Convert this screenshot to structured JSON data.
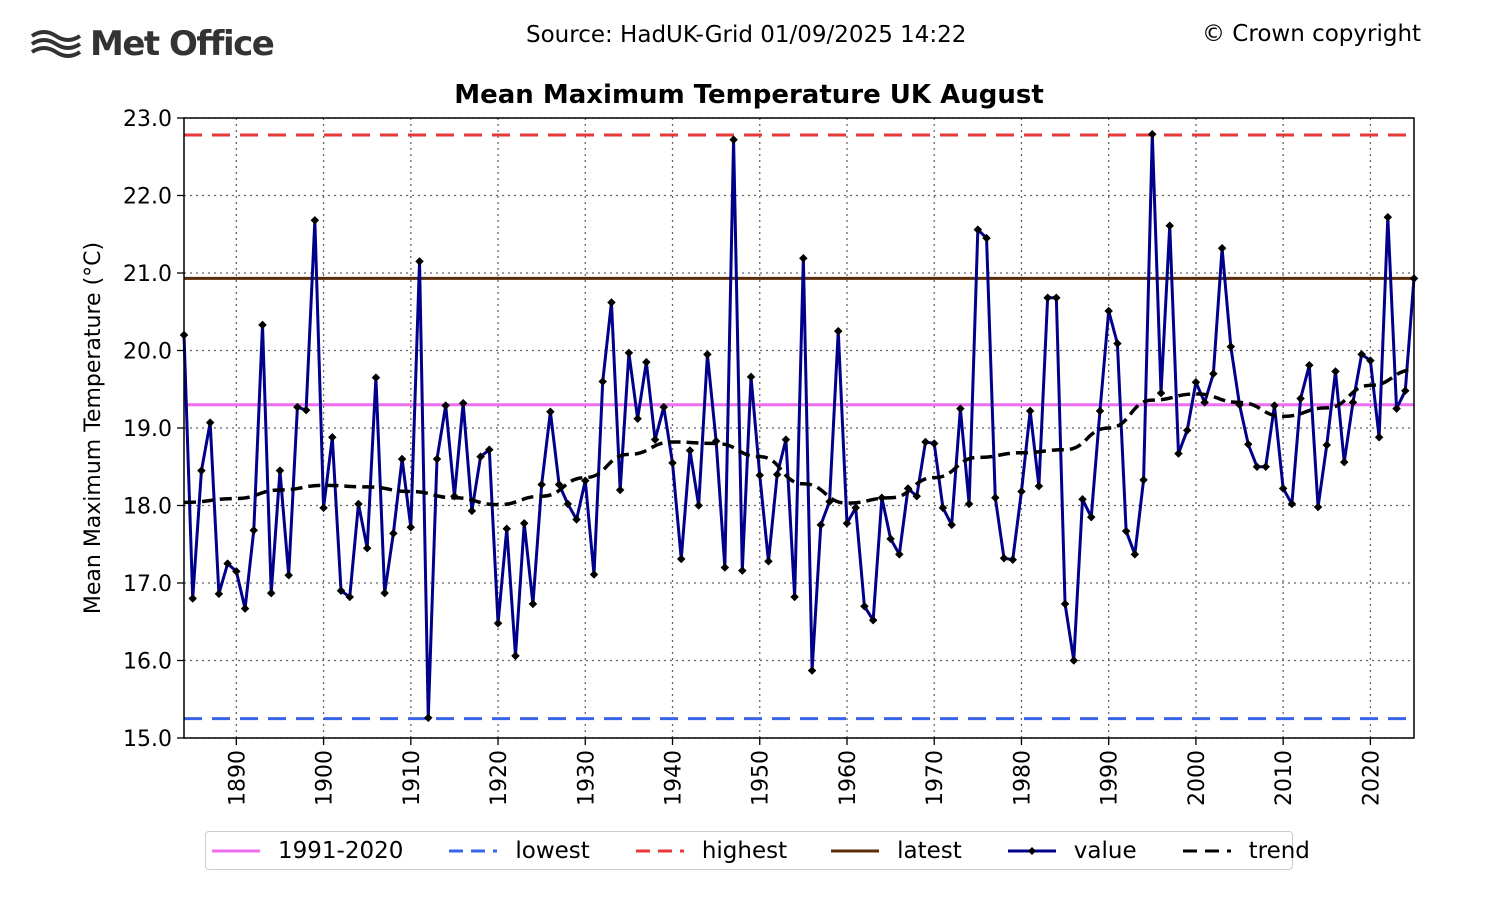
{
  "header": {
    "logo_text": "Met Office",
    "source": "Source: HadUK-Grid 01/09/2025 14:22",
    "copyright": "© Crown copyright"
  },
  "chart_data": {
    "type": "line",
    "title": "Mean Maximum Temperature UK August",
    "xlabel": "",
    "ylabel": "Mean Maximum Temperature (°C)",
    "xlim": [
      1884,
      2025
    ],
    "ylim": [
      15.0,
      23.0
    ],
    "yticks": [
      "15.0",
      "16.0",
      "17.0",
      "18.0",
      "19.0",
      "20.0",
      "21.0",
      "22.0",
      "23.0"
    ],
    "xticks": [
      "1890",
      "1900",
      "1910",
      "1920",
      "1930",
      "1940",
      "1950",
      "1960",
      "1970",
      "1980",
      "1990",
      "2000",
      "2010",
      "2020"
    ],
    "grid": true,
    "reference_lines": [
      {
        "name": "1991-2020",
        "value": 19.3,
        "color": "#ee6ef0",
        "style": "solid"
      },
      {
        "name": "lowest",
        "value": 15.25,
        "color": "#3a64e8",
        "style": "dashed"
      },
      {
        "name": "highest",
        "value": 22.78,
        "color": "#e8383a",
        "style": "dashed"
      },
      {
        "name": "latest",
        "value": 20.93,
        "color": "#5c2c06",
        "style": "solid"
      }
    ],
    "series": [
      {
        "name": "value",
        "color": "#00008b",
        "start_year": 1884,
        "values": [
          20.2,
          16.8,
          18.45,
          19.07,
          16.86,
          17.25,
          17.15,
          16.67,
          17.68,
          20.33,
          16.87,
          18.45,
          17.1,
          19.27,
          19.23,
          21.68,
          17.97,
          18.88,
          16.9,
          16.82,
          18.02,
          17.45,
          19.65,
          16.87,
          17.64,
          18.6,
          17.72,
          21.15,
          15.26,
          18.6,
          19.29,
          18.12,
          19.32,
          17.93,
          18.63,
          18.72,
          16.48,
          17.7,
          16.06,
          17.77,
          16.73,
          18.27,
          19.21,
          18.27,
          18.02,
          17.82,
          18.32,
          17.11,
          19.6,
          20.62,
          18.2,
          19.97,
          19.12,
          19.85,
          18.85,
          19.27,
          18.55,
          17.31,
          18.71,
          18.0,
          19.95,
          18.83,
          17.2,
          22.72,
          17.16,
          19.66,
          18.39,
          17.28,
          18.4,
          18.85,
          16.82,
          21.19,
          15.87,
          17.75,
          18.05,
          20.25,
          17.77,
          17.97,
          16.7,
          16.52,
          18.1,
          17.57,
          17.37,
          18.22,
          18.12,
          18.82,
          18.8,
          17.97,
          17.75,
          19.25,
          18.02,
          21.56,
          21.45,
          18.1,
          17.32,
          17.3,
          18.18,
          19.22,
          18.25,
          20.68,
          20.68,
          16.73,
          16.0,
          18.08,
          17.85,
          19.22,
          20.51,
          20.09,
          17.67,
          17.37,
          18.33,
          22.79,
          19.45,
          21.61,
          18.67,
          18.97,
          19.59,
          19.33,
          19.7,
          21.32,
          20.05,
          19.3,
          18.79,
          18.5,
          18.5,
          19.29,
          18.22,
          18.02,
          19.38,
          19.81,
          17.98,
          18.78,
          19.73,
          18.56,
          19.33,
          19.95,
          19.87,
          18.88,
          21.72,
          19.25,
          19.48,
          20.93
        ]
      },
      {
        "name": "trend",
        "color": "#000000",
        "style": "dashed",
        "points": [
          [
            1884,
            18.04
          ],
          [
            1890,
            18.09
          ],
          [
            1895,
            18.2
          ],
          [
            1900,
            18.26
          ],
          [
            1905,
            18.24
          ],
          [
            1910,
            18.18
          ],
          [
            1915,
            18.1
          ],
          [
            1920,
            18.01
          ],
          [
            1925,
            18.12
          ],
          [
            1930,
            18.36
          ],
          [
            1935,
            18.66
          ],
          [
            1940,
            18.82
          ],
          [
            1945,
            18.8
          ],
          [
            1950,
            18.63
          ],
          [
            1955,
            18.28
          ],
          [
            1960,
            18.03
          ],
          [
            1965,
            18.1
          ],
          [
            1970,
            18.36
          ],
          [
            1975,
            18.62
          ],
          [
            1980,
            18.68
          ],
          [
            1985,
            18.72
          ],
          [
            1990,
            19.0
          ],
          [
            1995,
            19.36
          ],
          [
            2000,
            19.44
          ],
          [
            2005,
            19.33
          ],
          [
            2010,
            19.15
          ],
          [
            2015,
            19.26
          ],
          [
            2020,
            19.55
          ],
          [
            2025,
            19.75
          ]
        ]
      }
    ],
    "legend": {
      "position": "bottom",
      "entries": [
        {
          "label": "1991-2020",
          "color": "#ee6ef0",
          "style": "solid"
        },
        {
          "label": "lowest",
          "color": "#3a64e8",
          "style": "dashed"
        },
        {
          "label": "highest",
          "color": "#e8383a",
          "style": "dashed"
        },
        {
          "label": "latest",
          "color": "#5c2c06",
          "style": "solid"
        },
        {
          "label": "value",
          "color": "#00008b",
          "style": "marker"
        },
        {
          "label": "trend",
          "color": "#000000",
          "style": "dashed"
        }
      ]
    }
  }
}
